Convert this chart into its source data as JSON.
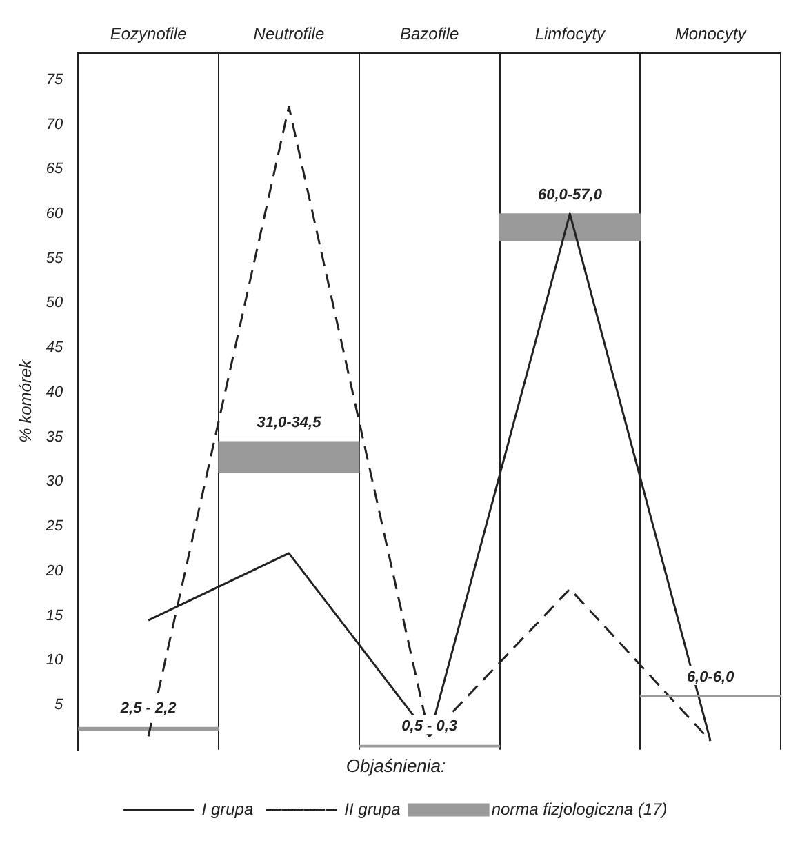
{
  "chart_data": {
    "type": "line",
    "categories": [
      "Eozynofile",
      "Neutrofile",
      "Bazofile",
      "Limfocyty",
      "Monocyty"
    ],
    "ylabel": "% komórek",
    "legend_title": "Objaśnienia:",
    "legend": "bottom",
    "ylim": [
      0,
      78
    ],
    "yticks": [
      5,
      10,
      15,
      20,
      25,
      30,
      35,
      40,
      45,
      50,
      55,
      60,
      65,
      70,
      75
    ],
    "grid": "x",
    "marker": "none",
    "series": [
      {
        "name": "I grupa",
        "color": "#222222",
        "line_style": "solid",
        "values": [
          14.5,
          22,
          1.5,
          60,
          1
        ]
      },
      {
        "name": "II grupa",
        "color": "#222222",
        "line_style": "dashed",
        "values": [
          1.5,
          72,
          1.5,
          18,
          1
        ]
      },
      {
        "name": "norma fizjologiczna (17)",
        "type": "bar",
        "color": "#9a9a9a",
        "base": [
          2.2,
          31,
          0.3,
          57,
          6
        ],
        "values": [
          0.3,
          3.5,
          0.2,
          3,
          0
        ]
      }
    ],
    "annotations": [
      {
        "text": "2,5 - 2,2",
        "x": "Eozynofile",
        "y": 2.5
      },
      {
        "text": "31,0-34,5",
        "x": "Neutrofile",
        "y": 34.5
      },
      {
        "text": "0,5 - 0,3",
        "x": "Bazofile",
        "y": 0.5
      },
      {
        "text": "60,0-57,0",
        "x": "Limfocyty",
        "y": 60
      },
      {
        "text": "6,0-6,0",
        "x": "Monocyty",
        "y": 6
      }
    ]
  }
}
